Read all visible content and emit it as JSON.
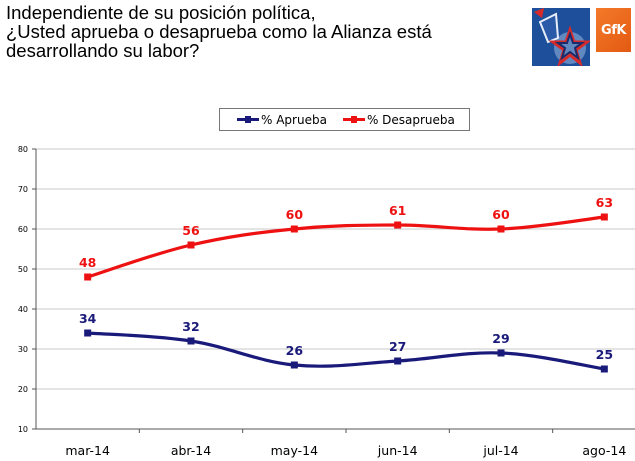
{
  "title": "Independiente de su posición política,\n¿Usted aprueba o desaprueba como la Alianza está\ndesarrollando su labor?",
  "logos": {
    "left": "alianza-star-logo",
    "right_text": "GfK"
  },
  "legend": [
    {
      "label": "% Aprueba",
      "color": "#1a1a7a"
    },
    {
      "label": "% Desaprueba",
      "color": "#ee1111"
    }
  ],
  "chart_data": {
    "type": "line",
    "title": "",
    "xlabel": "",
    "ylabel": "",
    "categories": [
      "mar-14",
      "abr-14",
      "may-14",
      "jun-14",
      "jul-14",
      "ago-14"
    ],
    "series": [
      {
        "name": "% Aprueba",
        "color": "#1a1a7a",
        "values": [
          34,
          32,
          26,
          27,
          29,
          25
        ]
      },
      {
        "name": "% Desaprueba",
        "color": "#ee1111",
        "values": [
          48,
          56,
          60,
          61,
          60,
          63
        ]
      }
    ],
    "ylim": [
      10,
      80
    ],
    "yticks": [
      10,
      20,
      30,
      40,
      50,
      60,
      70,
      80
    ],
    "grid": true,
    "smooth": true,
    "data_labels": true,
    "legend_position": "top-center"
  }
}
